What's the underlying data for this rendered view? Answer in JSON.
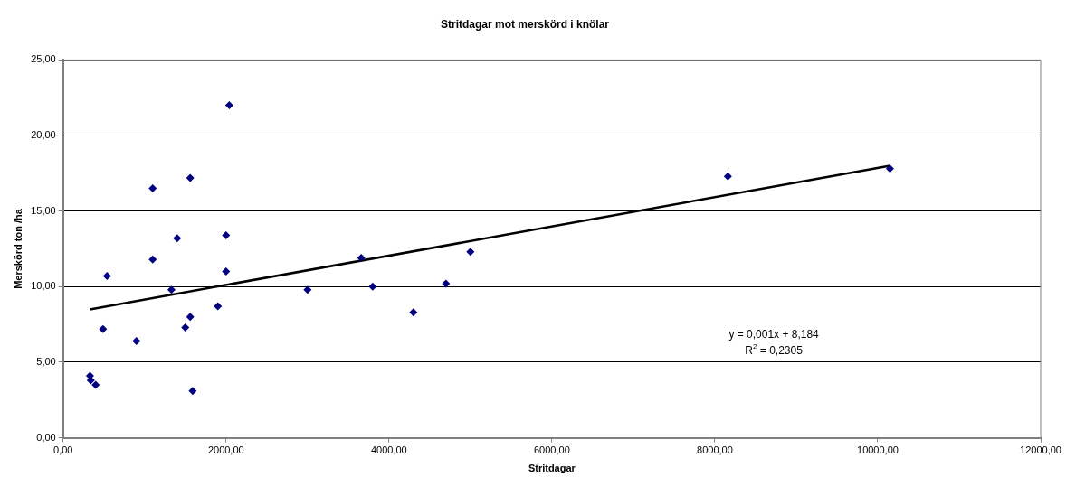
{
  "chart_data": {
    "type": "scatter",
    "title": "Stritdagar mot merskörd i knölar",
    "xlabel": "Stritdagar",
    "ylabel": "Merskörd ton /ha",
    "grid": "y",
    "legend": false,
    "xlim": [
      0,
      12000
    ],
    "xticks": [
      {
        "value": 0,
        "label": "0,00"
      },
      {
        "value": 2000,
        "label": "2000,00"
      },
      {
        "value": 4000,
        "label": "4000,00"
      },
      {
        "value": 6000,
        "label": "6000,00"
      },
      {
        "value": 8000,
        "label": "8000,00"
      },
      {
        "value": 10000,
        "label": "10000,00"
      },
      {
        "value": 12000,
        "label": "12000,00"
      }
    ],
    "ylim": [
      0,
      25
    ],
    "yticks": [
      {
        "value": 0,
        "label": "0,00"
      },
      {
        "value": 5,
        "label": "5,00"
      },
      {
        "value": 10,
        "label": "10,00"
      },
      {
        "value": 15,
        "label": "15,00"
      },
      {
        "value": 20,
        "label": "20,00"
      },
      {
        "value": 25,
        "label": "25,00"
      }
    ],
    "series": [
      {
        "marker": "diamond",
        "color": "#000080",
        "x": [
          330,
          340,
          400,
          490,
          540,
          900,
          1100,
          1100,
          1330,
          1400,
          1500,
          1560,
          1560,
          1590,
          1900,
          2000,
          2000,
          2040,
          3000,
          3660,
          3800,
          4300,
          4700,
          5000,
          8160,
          10150
        ],
        "values": [
          4.1,
          3.8,
          3.5,
          7.2,
          10.7,
          6.4,
          16.5,
          11.8,
          9.8,
          13.2,
          7.3,
          17.2,
          8.0,
          3.1,
          8.7,
          13.4,
          11.0,
          22.0,
          9.8,
          11.9,
          10.0,
          8.3,
          10.2,
          12.3,
          17.3,
          17.8
        ]
      },
      {
        "type": "line",
        "marker": "none",
        "color": "#000000",
        "x": [
          330,
          10150
        ],
        "values": [
          8.5,
          18.0
        ]
      }
    ],
    "annotations": [
      "y = 0,001x + 8,184",
      "R$^{2}$ = 0,2305"
    ]
  }
}
